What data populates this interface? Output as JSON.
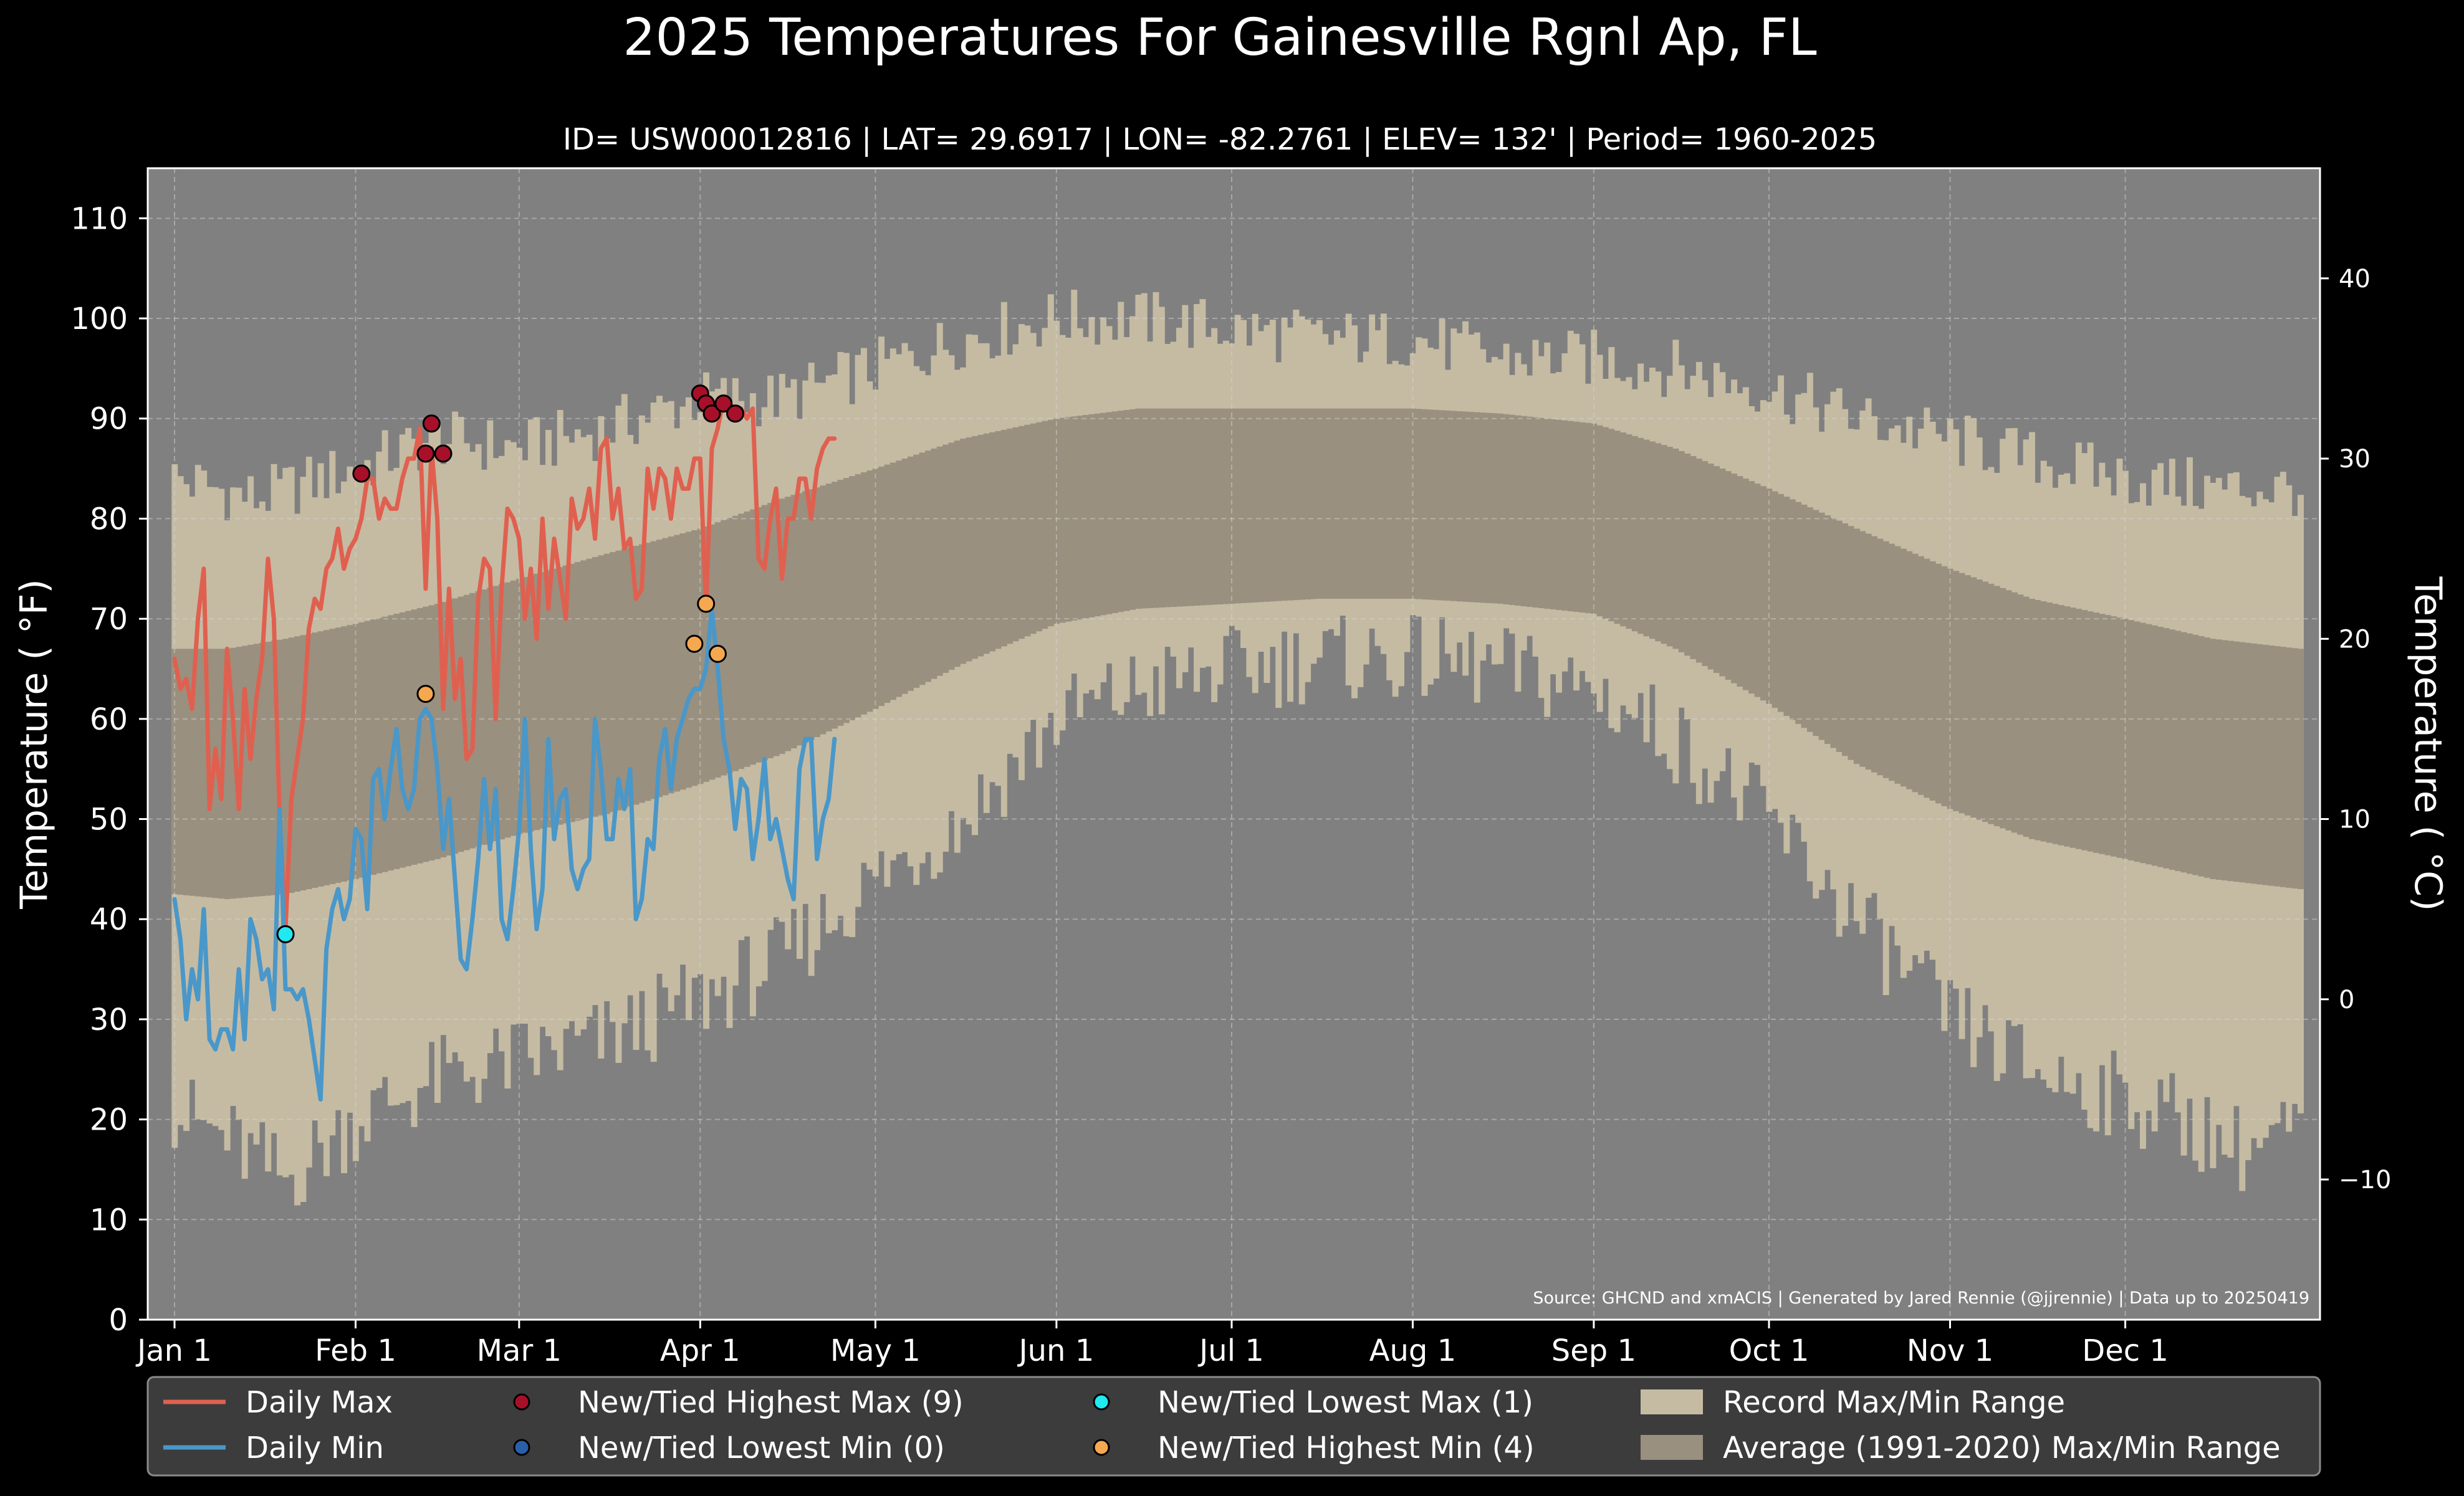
{
  "chart_data": {
    "type": "line",
    "title": "2025 Temperatures For Gainesville Rgnl Ap, FL",
    "subtitle": "ID= USW00012816 | LAT= 29.6917 | LON= -82.2761 | ELEV= 132' | Period= 1960-2025",
    "ylabel": "Temperature ( °F)",
    "ylabel_right": "Temperature ( °C)",
    "ylim": [
      0,
      115
    ],
    "y_ticks": [
      0,
      10,
      20,
      30,
      40,
      50,
      60,
      70,
      80,
      90,
      100,
      110
    ],
    "y2_ticks": [
      -10,
      0,
      10,
      20,
      30,
      40
    ],
    "x_ticks": [
      {
        "label": "Jan 1",
        "day": 1
      },
      {
        "label": "Feb 1",
        "day": 32
      },
      {
        "label": "Mar 1",
        "day": 60
      },
      {
        "label": "Apr 1",
        "day": 91
      },
      {
        "label": "May 1",
        "day": 121
      },
      {
        "label": "Jun 1",
        "day": 152
      },
      {
        "label": "Jul 1",
        "day": 182
      },
      {
        "label": "Aug 1",
        "day": 213
      },
      {
        "label": "Sep 1",
        "day": 244
      },
      {
        "label": "Oct 1",
        "day": 274
      },
      {
        "label": "Nov 1",
        "day": 305
      },
      {
        "label": "Dec 1",
        "day": 335
      }
    ],
    "grid": true,
    "source": "Source: GHCND and xmACIS | Generated by Jared Rennie (@jjrennie) | Data up to 20250419",
    "record_range": {
      "max_anchors": [
        [
          1,
          84
        ],
        [
          15,
          82
        ],
        [
          32,
          85
        ],
        [
          46,
          88
        ],
        [
          60,
          87
        ],
        [
          75,
          89
        ],
        [
          91,
          92
        ],
        [
          105,
          92
        ],
        [
          121,
          95
        ],
        [
          136,
          98
        ],
        [
          152,
          100
        ],
        [
          166,
          100
        ],
        [
          182,
          99
        ],
        [
          197,
          98
        ],
        [
          213,
          98
        ],
        [
          228,
          96
        ],
        [
          244,
          96
        ],
        [
          258,
          95
        ],
        [
          274,
          93
        ],
        [
          289,
          90
        ],
        [
          305,
          88
        ],
        [
          319,
          86
        ],
        [
          335,
          84
        ],
        [
          350,
          83
        ],
        [
          365,
          83
        ]
      ],
      "min_anchors": [
        [
          1,
          21
        ],
        [
          10,
          18
        ],
        [
          20,
          14
        ],
        [
          32,
          20
        ],
        [
          46,
          24
        ],
        [
          60,
          26
        ],
        [
          75,
          28
        ],
        [
          91,
          32
        ],
        [
          105,
          36
        ],
        [
          121,
          44
        ],
        [
          136,
          50
        ],
        [
          152,
          60
        ],
        [
          166,
          63
        ],
        [
          182,
          65
        ],
        [
          197,
          66
        ],
        [
          213,
          66
        ],
        [
          228,
          65
        ],
        [
          244,
          63
        ],
        [
          258,
          58
        ],
        [
          274,
          50
        ],
        [
          289,
          40
        ],
        [
          305,
          30
        ],
        [
          319,
          25
        ],
        [
          335,
          22
        ],
        [
          345,
          20
        ],
        [
          355,
          17
        ],
        [
          365,
          19
        ]
      ]
    },
    "average_range": {
      "max_anchors": [
        [
          1,
          67
        ],
        [
          10,
          67
        ],
        [
          20,
          68
        ],
        [
          32,
          69.5
        ],
        [
          46,
          71.5
        ],
        [
          60,
          74
        ],
        [
          75,
          76.5
        ],
        [
          91,
          79
        ],
        [
          105,
          82
        ],
        [
          121,
          85
        ],
        [
          136,
          88
        ],
        [
          152,
          90
        ],
        [
          166,
          91
        ],
        [
          182,
          91
        ],
        [
          197,
          91
        ],
        [
          213,
          91
        ],
        [
          228,
          90.5
        ],
        [
          244,
          89.5
        ],
        [
          258,
          87
        ],
        [
          274,
          83
        ],
        [
          289,
          79
        ],
        [
          305,
          75
        ],
        [
          319,
          72
        ],
        [
          335,
          70
        ],
        [
          350,
          68
        ],
        [
          365,
          67
        ]
      ],
      "min_anchors": [
        [
          1,
          42.5
        ],
        [
          10,
          42
        ],
        [
          20,
          42.5
        ],
        [
          32,
          44
        ],
        [
          46,
          46
        ],
        [
          60,
          48.5
        ],
        [
          75,
          50.5
        ],
        [
          91,
          53.5
        ],
        [
          105,
          56.5
        ],
        [
          121,
          61
        ],
        [
          136,
          65.5
        ],
        [
          152,
          69.5
        ],
        [
          166,
          71
        ],
        [
          182,
          71.5
        ],
        [
          197,
          72
        ],
        [
          213,
          72
        ],
        [
          228,
          71.5
        ],
        [
          244,
          70.5
        ],
        [
          258,
          67
        ],
        [
          274,
          61.5
        ],
        [
          289,
          55.5
        ],
        [
          305,
          51
        ],
        [
          319,
          48
        ],
        [
          335,
          46
        ],
        [
          350,
          44
        ],
        [
          365,
          43
        ]
      ]
    },
    "series": [
      {
        "name": "Daily Max",
        "color": "#e06050",
        "x": [
          1,
          2,
          3,
          4,
          5,
          6,
          7,
          8,
          9,
          10,
          11,
          12,
          13,
          14,
          15,
          16,
          17,
          18,
          19,
          20,
          21,
          22,
          23,
          24,
          25,
          26,
          27,
          28,
          29,
          30,
          31,
          32,
          33,
          34,
          35,
          36,
          37,
          38,
          39,
          40,
          41,
          42,
          43,
          44,
          45,
          46,
          47,
          48,
          49,
          50,
          51,
          52,
          53,
          54,
          55,
          56,
          57,
          58,
          59,
          60,
          61,
          62,
          63,
          64,
          65,
          66,
          67,
          68,
          69,
          70,
          71,
          72,
          73,
          74,
          75,
          76,
          77,
          78,
          79,
          80,
          81,
          82,
          83,
          84,
          85,
          86,
          87,
          88,
          89,
          90,
          91,
          92,
          93,
          94,
          95,
          96,
          97,
          98,
          99,
          100,
          101,
          102,
          103,
          104,
          105,
          106,
          107,
          108,
          109,
          110,
          111,
          112,
          113,
          114
        ],
        "y": [
          66,
          63,
          64,
          61,
          70,
          75,
          51,
          57,
          52,
          67,
          60,
          51,
          63,
          56,
          62,
          66,
          76,
          70,
          50,
          39,
          52,
          56,
          60,
          69,
          72,
          71,
          75,
          76,
          79,
          75,
          77,
          78,
          80,
          84,
          84,
          80,
          82,
          81,
          81,
          84,
          86,
          86,
          89,
          73,
          87,
          80,
          61,
          73,
          62,
          66,
          56,
          57,
          72,
          76,
          75,
          60,
          73,
          81,
          80,
          78,
          70,
          75,
          68,
          80,
          71,
          78,
          74,
          70,
          82,
          79,
          80,
          83,
          78,
          87,
          88,
          80,
          83,
          77,
          78,
          72,
          73,
          85,
          81,
          85,
          84,
          80,
          85,
          83,
          83,
          86,
          86,
          71,
          87,
          89,
          92,
          91,
          90,
          91,
          90,
          91,
          76,
          75,
          80,
          83,
          74,
          80,
          80,
          84,
          84,
          80,
          85,
          87,
          88,
          88
        ]
      },
      {
        "name": "Daily Min",
        "color": "#4a97c9",
        "x": [
          1,
          2,
          3,
          4,
          5,
          6,
          7,
          8,
          9,
          10,
          11,
          12,
          13,
          14,
          15,
          16,
          17,
          18,
          19,
          20,
          21,
          22,
          23,
          24,
          25,
          26,
          27,
          28,
          29,
          30,
          31,
          32,
          33,
          34,
          35,
          36,
          37,
          38,
          39,
          40,
          41,
          42,
          43,
          44,
          45,
          46,
          47,
          48,
          49,
          50,
          51,
          52,
          53,
          54,
          55,
          56,
          57,
          58,
          59,
          60,
          61,
          62,
          63,
          64,
          65,
          66,
          67,
          68,
          69,
          70,
          71,
          72,
          73,
          74,
          75,
          76,
          77,
          78,
          79,
          80,
          81,
          82,
          83,
          84,
          85,
          86,
          87,
          88,
          89,
          90,
          91,
          92,
          93,
          94,
          95,
          96,
          97,
          98,
          99,
          100,
          101,
          102,
          103,
          104,
          105,
          106,
          107,
          108,
          109,
          110,
          111,
          112,
          113,
          114
        ],
        "y": [
          42,
          38,
          30,
          35,
          32,
          41,
          28,
          27,
          29,
          29,
          27,
          35,
          28,
          40,
          38,
          34,
          35,
          31,
          51,
          33,
          33,
          32,
          33,
          30,
          26,
          22,
          37,
          41,
          43,
          40,
          42,
          49,
          48,
          41,
          54,
          55,
          50,
          55,
          59,
          53,
          51,
          53,
          60,
          61,
          60,
          55,
          47,
          52,
          44,
          36,
          35,
          40,
          46,
          54,
          47,
          53,
          40,
          38,
          43,
          49,
          60,
          47,
          39,
          43,
          58,
          48,
          52,
          53,
          45,
          43,
          45,
          46,
          60,
          55,
          48,
          48,
          54,
          51,
          55,
          40,
          42,
          48,
          47,
          56,
          59,
          53,
          58,
          60,
          62,
          63,
          63,
          65,
          71,
          65,
          58,
          55,
          49,
          54,
          53,
          46,
          50,
          56,
          48,
          50,
          47,
          44,
          42,
          55,
          58,
          58,
          46,
          50,
          52,
          58
        ]
      }
    ],
    "markers": [
      {
        "name": "New/Tied Highest Max (9)",
        "color": "#a8102a",
        "points": [
          [
            33,
            84.5
          ],
          [
            44,
            86.5
          ],
          [
            45,
            89.5
          ],
          [
            47,
            86.5
          ],
          [
            91,
            92.5
          ],
          [
            92,
            91.5
          ],
          [
            93,
            90.5
          ],
          [
            95,
            91.5
          ],
          [
            97,
            90.5
          ]
        ]
      },
      {
        "name": "New/Tied Lowest Min (0)",
        "color": "#2a5fa8",
        "points": []
      },
      {
        "name": "New/Tied Lowest Max (1)",
        "color": "#22e8f0",
        "points": [
          [
            20,
            38.5
          ]
        ]
      },
      {
        "name": "New/Tied Highest Min (4)",
        "color": "#f5a850",
        "points": [
          [
            44,
            62.5
          ],
          [
            90,
            67.5
          ],
          [
            92,
            71.5
          ],
          [
            94,
            66.5
          ]
        ]
      }
    ],
    "legend": {
      "placement": "bottom",
      "items": [
        {
          "label": "Daily Max",
          "kind": "line",
          "color": "#e06050"
        },
        {
          "label": "Daily Min",
          "kind": "line",
          "color": "#4a97c9"
        },
        {
          "label": "New/Tied Highest Max (9)",
          "kind": "marker",
          "color": "#a8102a"
        },
        {
          "label": "New/Tied Lowest Min (0)",
          "kind": "marker",
          "color": "#2a5fa8"
        },
        {
          "label": "New/Tied Lowest Max (1)",
          "kind": "marker",
          "color": "#22e8f0"
        },
        {
          "label": "New/Tied Highest Min (4)",
          "kind": "marker",
          "color": "#f5a850"
        },
        {
          "label": "Record Max/Min Range",
          "kind": "patch",
          "color": "#c5bba3"
        },
        {
          "label": "Average (1991-2020) Max/Min Range",
          "kind": "patch",
          "color": "#9a907f"
        }
      ]
    }
  }
}
